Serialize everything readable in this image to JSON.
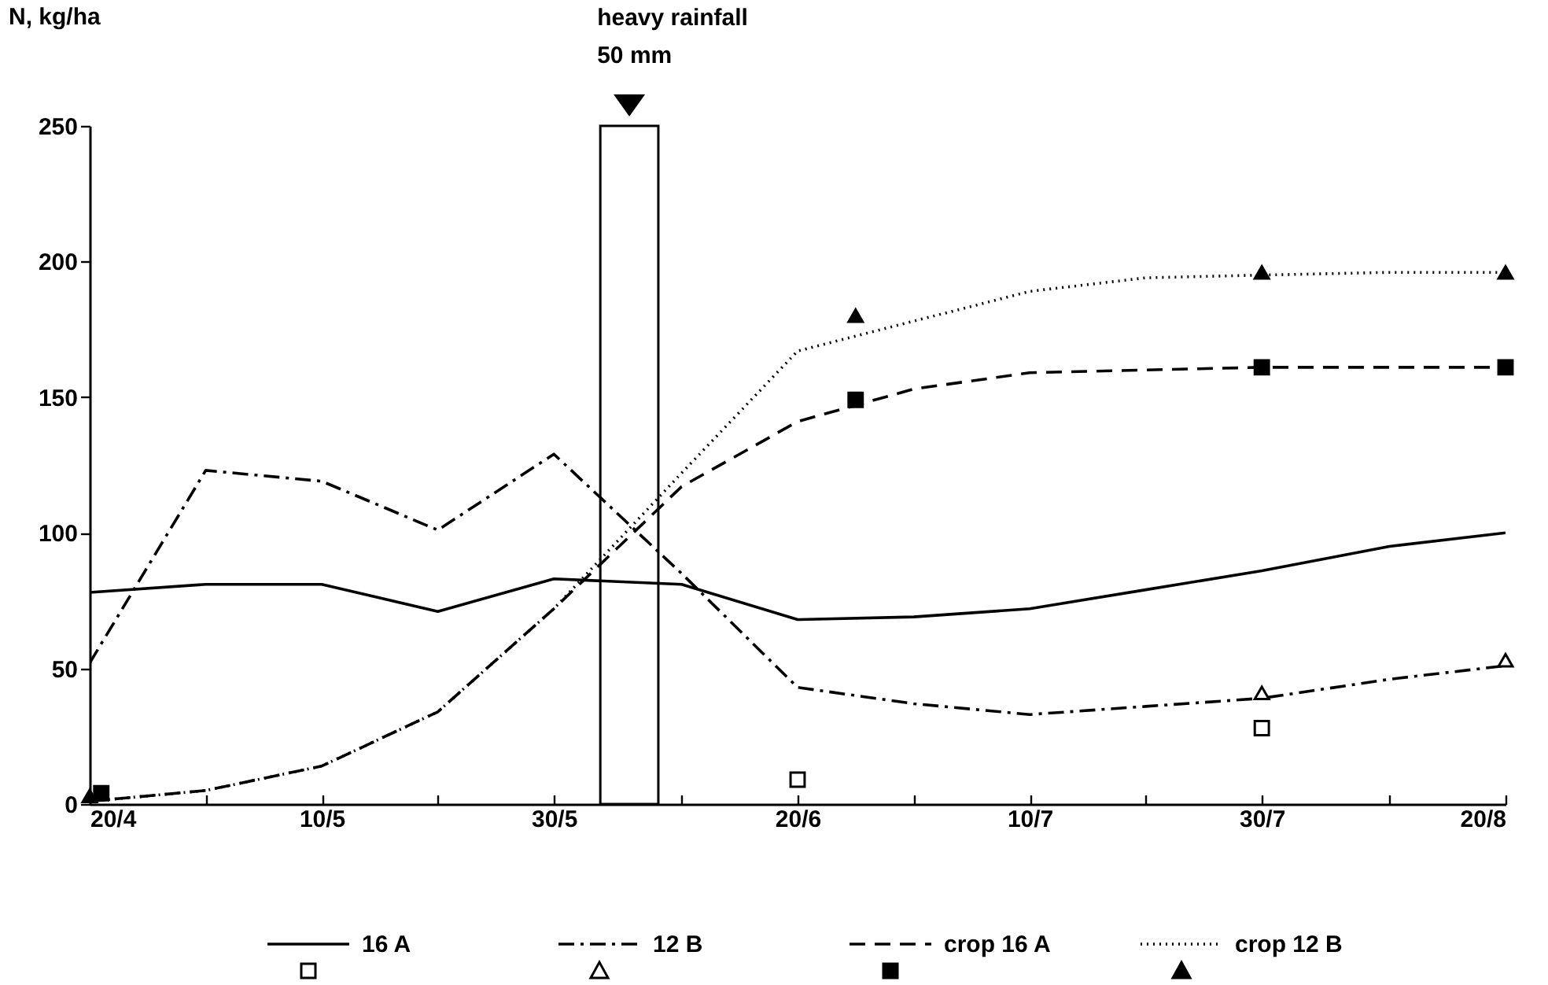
{
  "chart_data": {
    "type": "line",
    "ylabel": "N, kg/ha",
    "x": [
      "--04-20",
      "--04-30",
      "--05-10",
      "--05-20",
      "--05-30",
      "--06-10",
      "--06-20",
      "--06-30",
      "--07-10",
      "--07-20",
      "--07-30",
      "--08-10",
      "--08-20"
    ],
    "series": [
      {
        "name": "16 A",
        "color": "#000000",
        "line_style": "solid",
        "values": [
          78,
          81,
          81,
          71,
          83,
          81,
          68,
          69,
          72,
          79,
          86,
          95,
          100
        ]
      },
      {
        "name": "12 B",
        "color": "#000000",
        "line_style": "dashdot",
        "values": [
          52,
          123,
          119,
          101,
          129,
          85,
          43,
          37,
          33,
          36,
          39,
          46,
          51
        ]
      },
      {
        "name": "crop 16 A",
        "color": "#000000",
        "line_style": "dashed",
        "values": [
          1,
          5,
          14,
          34,
          72,
          117,
          141,
          153,
          159,
          160,
          161,
          161,
          161
        ]
      },
      {
        "name": "crop 12 B",
        "color": "#000000",
        "line_style": "dotted",
        "values": [
          1,
          5,
          14,
          34,
          72,
          122,
          167,
          178,
          189,
          194,
          195,
          196,
          196
        ]
      },
      {
        "type": "scatter",
        "color": "#ffffff",
        "marker": "square",
        "x": [
          "--06-20",
          "--07-30"
        ],
        "values": [
          9,
          28
        ]
      },
      {
        "type": "scatter",
        "color": "#ffffff",
        "marker": "triangle",
        "x": [
          "--07-30",
          "--08-20"
        ],
        "values": [
          41,
          53
        ]
      },
      {
        "type": "scatter",
        "color": "#000000",
        "marker": "square",
        "x": [
          "--04-21",
          "--06-25",
          "--07-30",
          "--08-20"
        ],
        "values": [
          4,
          149,
          161,
          161
        ]
      },
      {
        "type": "scatter",
        "color": "#000000",
        "marker": "triangle",
        "x": [
          "--04-20",
          "--06-25",
          "--07-30",
          "--08-20"
        ],
        "values": [
          3,
          180,
          196,
          196
        ]
      }
    ],
    "bands": [
      {
        "axis": "x",
        "from": "--06-03",
        "to": "--06-08",
        "label": "heavy rainfall\n50 mm",
        "color": "#ffffff"
      }
    ],
    "xlim": [
      "--04-20",
      "--08-20"
    ],
    "xticks": [
      {
        "value": "--04-20",
        "label": "20/4"
      },
      {
        "value": "--04-30",
        "label": null
      },
      {
        "value": "--05-10",
        "label": "10/5"
      },
      {
        "value": "--05-20",
        "label": null
      },
      {
        "value": "--05-30",
        "label": "30/5"
      },
      {
        "value": "--06-10",
        "label": null
      },
      {
        "value": "--06-20",
        "label": "20/6"
      },
      {
        "value": "--06-30",
        "label": null
      },
      {
        "value": "--07-10",
        "label": "10/7"
      },
      {
        "value": "--07-20",
        "label": null
      },
      {
        "value": "--07-30",
        "label": "30/7"
      },
      {
        "value": "--08-10",
        "label": null
      },
      {
        "value": "--08-20",
        "label": "20/8"
      }
    ],
    "ylim": [
      0,
      250
    ],
    "yticks": [
      0,
      50,
      100,
      150,
      200,
      250
    ],
    "legend": "bottom"
  }
}
